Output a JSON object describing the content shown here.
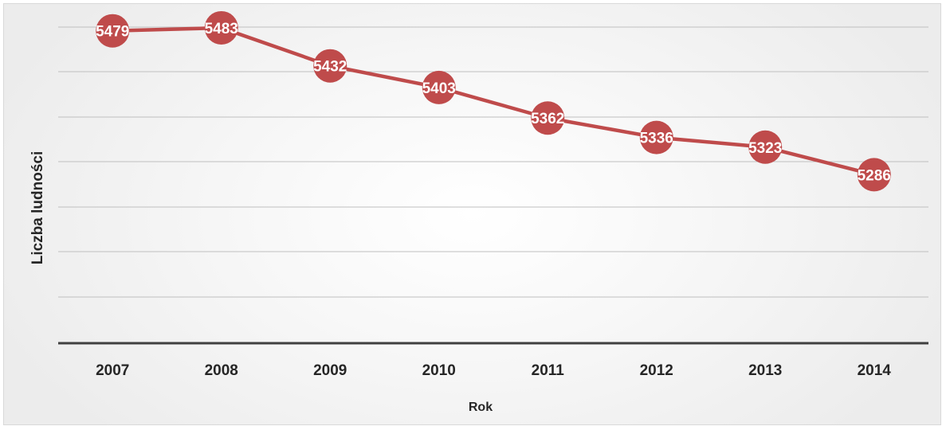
{
  "chart_data": {
    "type": "line",
    "title": "",
    "xlabel": "Rok",
    "ylabel": "Liczba ludności",
    "categories": [
      "2007",
      "2008",
      "2009",
      "2010",
      "2011",
      "2012",
      "2013",
      "2014"
    ],
    "series": [
      {
        "values": [
          5479,
          5483,
          5432,
          5403,
          5362,
          5336,
          5323,
          5286
        ]
      }
    ],
    "ylim": [
      5060,
      5515
    ],
    "grid": true,
    "legend": "none",
    "colors": {
      "line": "#bf4b4b",
      "marker": "#bf4b4b",
      "label_text": "#ffffff",
      "gridline": "#bfbfbf",
      "axis": "#404040"
    }
  }
}
